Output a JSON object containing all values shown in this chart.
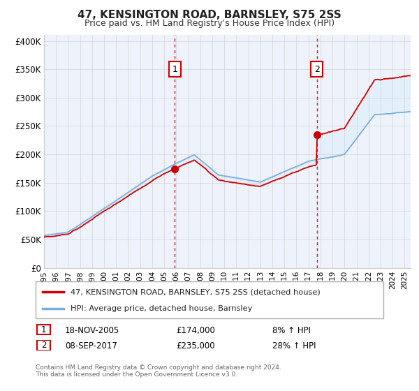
{
  "title": "47, KENSINGTON ROAD, BARNSLEY, S75 2SS",
  "subtitle": "Price paid vs. HM Land Registry's House Price Index (HPI)",
  "legend_line1": "47, KENSINGTON ROAD, BARNSLEY, S75 2SS (detached house)",
  "legend_line2": "HPI: Average price, detached house, Barnsley",
  "annotation1_label": "1",
  "annotation1_date": "18-NOV-2005",
  "annotation1_price": "£174,000",
  "annotation1_hpi": "8% ↑ HPI",
  "annotation1_year": 2005.88,
  "annotation1_value": 174000,
  "annotation2_label": "2",
  "annotation2_date": "08-SEP-2017",
  "annotation2_price": "£235,000",
  "annotation2_hpi": "28% ↑ HPI",
  "annotation2_year": 2017.69,
  "annotation2_value": 235000,
  "footer1": "Contains HM Land Registry data © Crown copyright and database right 2024.",
  "footer2": "This data is licensed under the Open Government Licence v3.0.",
  "ylim": [
    0,
    410000
  ],
  "yticks": [
    0,
    50000,
    100000,
    150000,
    200000,
    250000,
    300000,
    350000,
    400000
  ],
  "ytick_labels": [
    "£0",
    "£50K",
    "£100K",
    "£150K",
    "£200K",
    "£250K",
    "£300K",
    "£350K",
    "£400K"
  ],
  "line_color_red": "#cc0000",
  "line_color_blue": "#7aaddc",
  "fill_color": "#ddeeff",
  "background_color": "#eef2fa",
  "grid_color": "#cccccc",
  "annotation_line_color": "#cc0000",
  "annotation_box_color": "#cc0000",
  "xmin": 1995,
  "xmax": 2025.5
}
